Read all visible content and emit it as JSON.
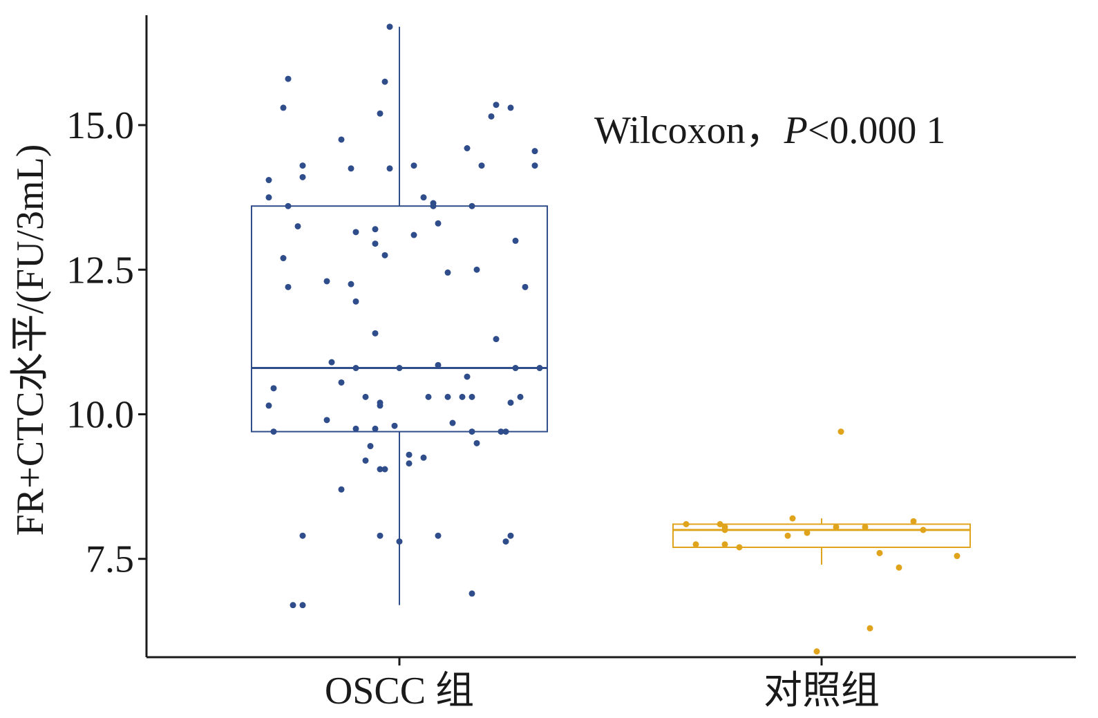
{
  "chart_data": {
    "type": "box",
    "title": "",
    "xlabel": "",
    "ylabel": "FR+CTC水平/(FU/3mL)",
    "ylim": [
      5.8,
      16.9
    ],
    "yticks": [
      7.5,
      10.0,
      12.5,
      15.0
    ],
    "ytick_labels": [
      "7.5",
      "10.0",
      "12.5",
      "15.0"
    ],
    "categories": [
      "OSCC 组",
      "对照组"
    ],
    "grid": false,
    "annotation": {
      "prefix": "Wilcoxon，",
      "p_symbol": "P",
      "p_value": "<0.000 1"
    },
    "series": [
      {
        "category": "OSCC 组",
        "color": "#2f4d8a",
        "box": {
          "whisker_low": 6.7,
          "q1": 9.7,
          "median": 10.8,
          "q3": 13.6,
          "whisker_high": 16.7
        },
        "points": [
          [
            -0.02,
            16.7
          ],
          [
            -0.23,
            15.8
          ],
          [
            -0.03,
            15.75
          ],
          [
            -0.24,
            15.3
          ],
          [
            -0.04,
            15.2
          ],
          [
            0.2,
            15.35
          ],
          [
            0.23,
            15.3
          ],
          [
            0.19,
            15.15
          ],
          [
            -0.12,
            14.75
          ],
          [
            0.14,
            14.6
          ],
          [
            0.28,
            14.55
          ],
          [
            -0.2,
            14.3
          ],
          [
            -0.1,
            14.25
          ],
          [
            -0.02,
            14.25
          ],
          [
            0.03,
            14.3
          ],
          [
            0.17,
            14.3
          ],
          [
            0.28,
            14.3
          ],
          [
            -0.2,
            14.1
          ],
          [
            -0.27,
            14.05
          ],
          [
            -0.27,
            13.75
          ],
          [
            0.05,
            13.75
          ],
          [
            -0.23,
            13.6
          ],
          [
            0.07,
            13.65
          ],
          [
            0.07,
            13.6
          ],
          [
            0.15,
            13.6
          ],
          [
            -0.21,
            13.25
          ],
          [
            0.08,
            13.3
          ],
          [
            -0.09,
            13.15
          ],
          [
            -0.05,
            13.2
          ],
          [
            0.03,
            13.1
          ],
          [
            -0.05,
            12.95
          ],
          [
            0.24,
            13.0
          ],
          [
            -0.24,
            12.7
          ],
          [
            -0.03,
            12.75
          ],
          [
            0.1,
            12.45
          ],
          [
            0.16,
            12.5
          ],
          [
            -0.23,
            12.2
          ],
          [
            -0.15,
            12.3
          ],
          [
            -0.1,
            12.25
          ],
          [
            -0.09,
            11.95
          ],
          [
            0.26,
            12.2
          ],
          [
            -0.05,
            11.4
          ],
          [
            0.2,
            11.3
          ],
          [
            -0.14,
            10.9
          ],
          [
            -0.09,
            10.8
          ],
          [
            0.0,
            10.8
          ],
          [
            0.08,
            10.85
          ],
          [
            0.24,
            10.8
          ],
          [
            0.29,
            10.8
          ],
          [
            0.14,
            10.65
          ],
          [
            -0.26,
            10.45
          ],
          [
            -0.12,
            10.55
          ],
          [
            -0.07,
            10.3
          ],
          [
            -0.04,
            10.2
          ],
          [
            -0.04,
            10.15
          ],
          [
            0.06,
            10.3
          ],
          [
            0.1,
            10.3
          ],
          [
            0.13,
            10.3
          ],
          [
            0.15,
            10.3
          ],
          [
            0.23,
            10.2
          ],
          [
            0.25,
            10.3
          ],
          [
            -0.27,
            10.15
          ],
          [
            -0.15,
            9.9
          ],
          [
            -0.09,
            9.75
          ],
          [
            -0.05,
            9.75
          ],
          [
            -0.01,
            9.8
          ],
          [
            0.11,
            9.85
          ],
          [
            0.15,
            9.7
          ],
          [
            0.21,
            9.7
          ],
          [
            0.22,
            9.7
          ],
          [
            -0.26,
            9.7
          ],
          [
            -0.06,
            9.45
          ],
          [
            0.16,
            9.5
          ],
          [
            0.02,
            9.3
          ],
          [
            0.05,
            9.25
          ],
          [
            -0.07,
            9.2
          ],
          [
            0.02,
            9.15
          ],
          [
            -0.04,
            9.05
          ],
          [
            -0.03,
            9.05
          ],
          [
            -0.12,
            8.7
          ],
          [
            -0.2,
            7.9
          ],
          [
            -0.04,
            7.9
          ],
          [
            0.08,
            7.9
          ],
          [
            0.23,
            7.9
          ],
          [
            0.22,
            7.8
          ],
          [
            0.0,
            7.8
          ],
          [
            0.15,
            6.9
          ],
          [
            -0.22,
            6.7
          ],
          [
            -0.2,
            6.7
          ]
        ]
      },
      {
        "category": "对照组",
        "color": "#e0a31c",
        "box": {
          "whisker_low": 7.4,
          "q1": 7.7,
          "median": 8.0,
          "q3": 8.1,
          "whisker_high": 8.2
        },
        "points": [
          [
            0.04,
            9.7
          ],
          [
            -0.06,
            8.2
          ],
          [
            0.19,
            8.15
          ],
          [
            -0.28,
            8.1
          ],
          [
            -0.21,
            8.1
          ],
          [
            -0.2,
            8.05
          ],
          [
            0.03,
            8.05
          ],
          [
            0.09,
            8.05
          ],
          [
            -0.2,
            8.0
          ],
          [
            0.21,
            8.0
          ],
          [
            -0.03,
            7.95
          ],
          [
            -0.07,
            7.9
          ],
          [
            -0.26,
            7.75
          ],
          [
            -0.2,
            7.75
          ],
          [
            -0.17,
            7.7
          ],
          [
            0.12,
            7.6
          ],
          [
            0.28,
            7.55
          ],
          [
            0.16,
            7.35
          ],
          [
            0.1,
            6.3
          ],
          [
            -0.01,
            5.9
          ]
        ]
      }
    ]
  }
}
